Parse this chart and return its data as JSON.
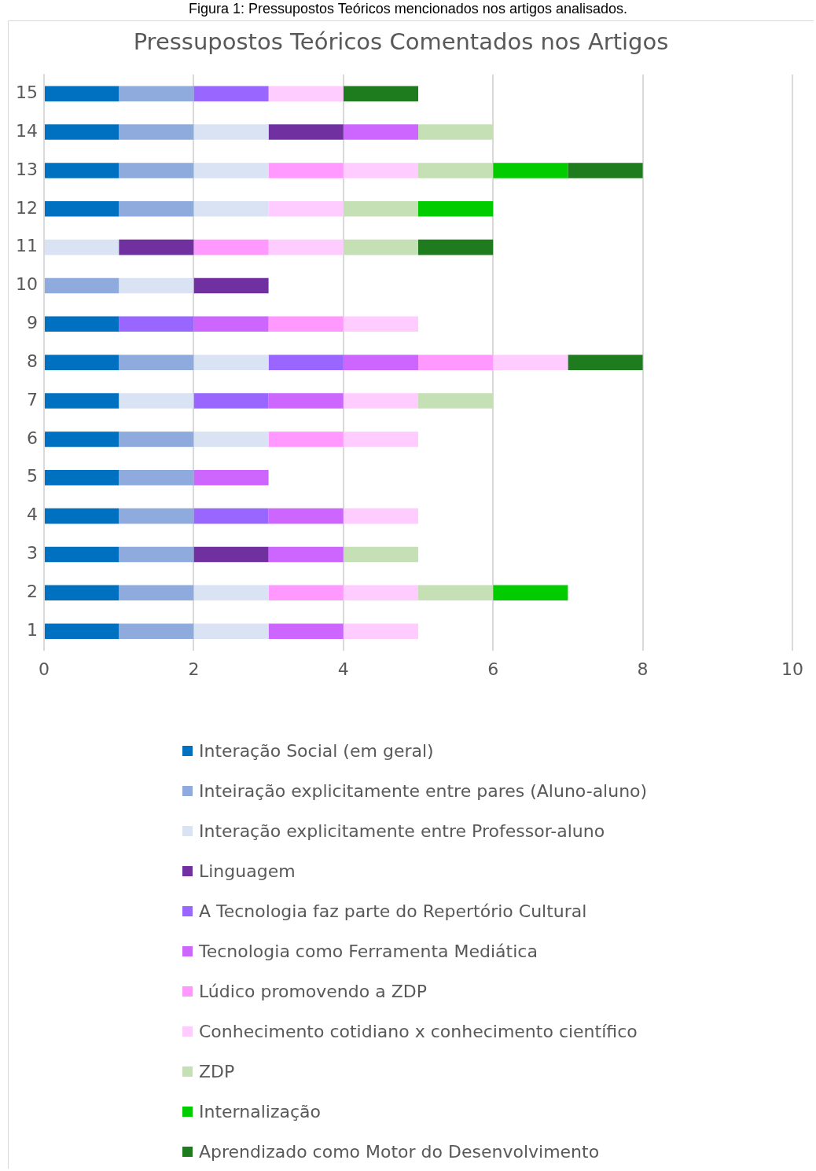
{
  "chart_data": {
    "type": "bar",
    "orientation": "horizontal",
    "stacked": true,
    "title": "Pressupostos Teóricos Comentados nos Artigos",
    "annotations": [
      "Figura 1: Pressupostos Teóricos mencionados nos artigos analisados."
    ],
    "categories": [
      "15",
      "14",
      "13",
      "12",
      "11",
      "10",
      "9",
      "8",
      "7",
      "6",
      "5",
      "4",
      "3",
      "2",
      "1"
    ],
    "series": [
      {
        "name": "Interação Social (em geral)",
        "color": "#0070c0",
        "values": [
          1,
          1,
          1,
          1,
          0,
          0,
          1,
          1,
          1,
          1,
          1,
          1,
          1,
          1,
          1
        ]
      },
      {
        "name": "Inteiração explicitamente entre pares (Aluno-aluno)",
        "color": "#8faadc",
        "values": [
          1,
          1,
          1,
          1,
          0,
          1,
          0,
          1,
          0,
          1,
          1,
          1,
          1,
          1,
          1
        ]
      },
      {
        "name": "Interação explicitamente entre Professor-aluno",
        "color": "#dae3f3",
        "values": [
          0,
          1,
          1,
          1,
          1,
          1,
          0,
          1,
          1,
          1,
          0,
          0,
          0,
          1,
          1
        ]
      },
      {
        "name": "Linguagem",
        "color": "#7030a0",
        "values": [
          0,
          1,
          0,
          0,
          1,
          1,
          0,
          0,
          0,
          0,
          0,
          0,
          1,
          0,
          0
        ]
      },
      {
        "name": "A Tecnologia faz parte do Repertório Cultural",
        "color": "#9966ff",
        "values": [
          1,
          0,
          0,
          0,
          0,
          0,
          1,
          1,
          1,
          0,
          0,
          1,
          0,
          0,
          0
        ]
      },
      {
        "name": "Tecnologia como Ferramenta Mediática",
        "color": "#cc66ff",
        "values": [
          0,
          1,
          0,
          0,
          0,
          0,
          1,
          1,
          1,
          0,
          1,
          1,
          1,
          0,
          1
        ]
      },
      {
        "name": "Lúdico promovendo a ZDP",
        "color": "#ff99ff",
        "values": [
          0,
          0,
          1,
          0,
          1,
          0,
          1,
          1,
          0,
          1,
          0,
          0,
          0,
          1,
          0
        ]
      },
      {
        "name": "Conhecimento cotidiano x conhecimento científico",
        "color": "#ffccff",
        "values": [
          1,
          0,
          1,
          1,
          1,
          0,
          1,
          1,
          1,
          1,
          0,
          1,
          0,
          1,
          1
        ]
      },
      {
        "name": "ZDP",
        "color": "#c5e0b4",
        "values": [
          0,
          1,
          1,
          1,
          1,
          0,
          0,
          0,
          1,
          0,
          0,
          0,
          1,
          1,
          0
        ]
      },
      {
        "name": "Internalização",
        "color": "#00cc00",
        "values": [
          0,
          0,
          1,
          1,
          0,
          0,
          0,
          0,
          0,
          0,
          0,
          0,
          0,
          1,
          0
        ]
      },
      {
        "name": "Aprendizado como Motor do Desenvolvimento",
        "color": "#1e7b1e",
        "values": [
          1,
          0,
          1,
          0,
          1,
          0,
          0,
          1,
          0,
          0,
          0,
          0,
          0,
          0,
          0
        ]
      }
    ],
    "xlim": [
      0,
      10
    ],
    "xticks": [
      0,
      2,
      4,
      6,
      8,
      10
    ],
    "grid": "x",
    "legend": "bottom"
  }
}
